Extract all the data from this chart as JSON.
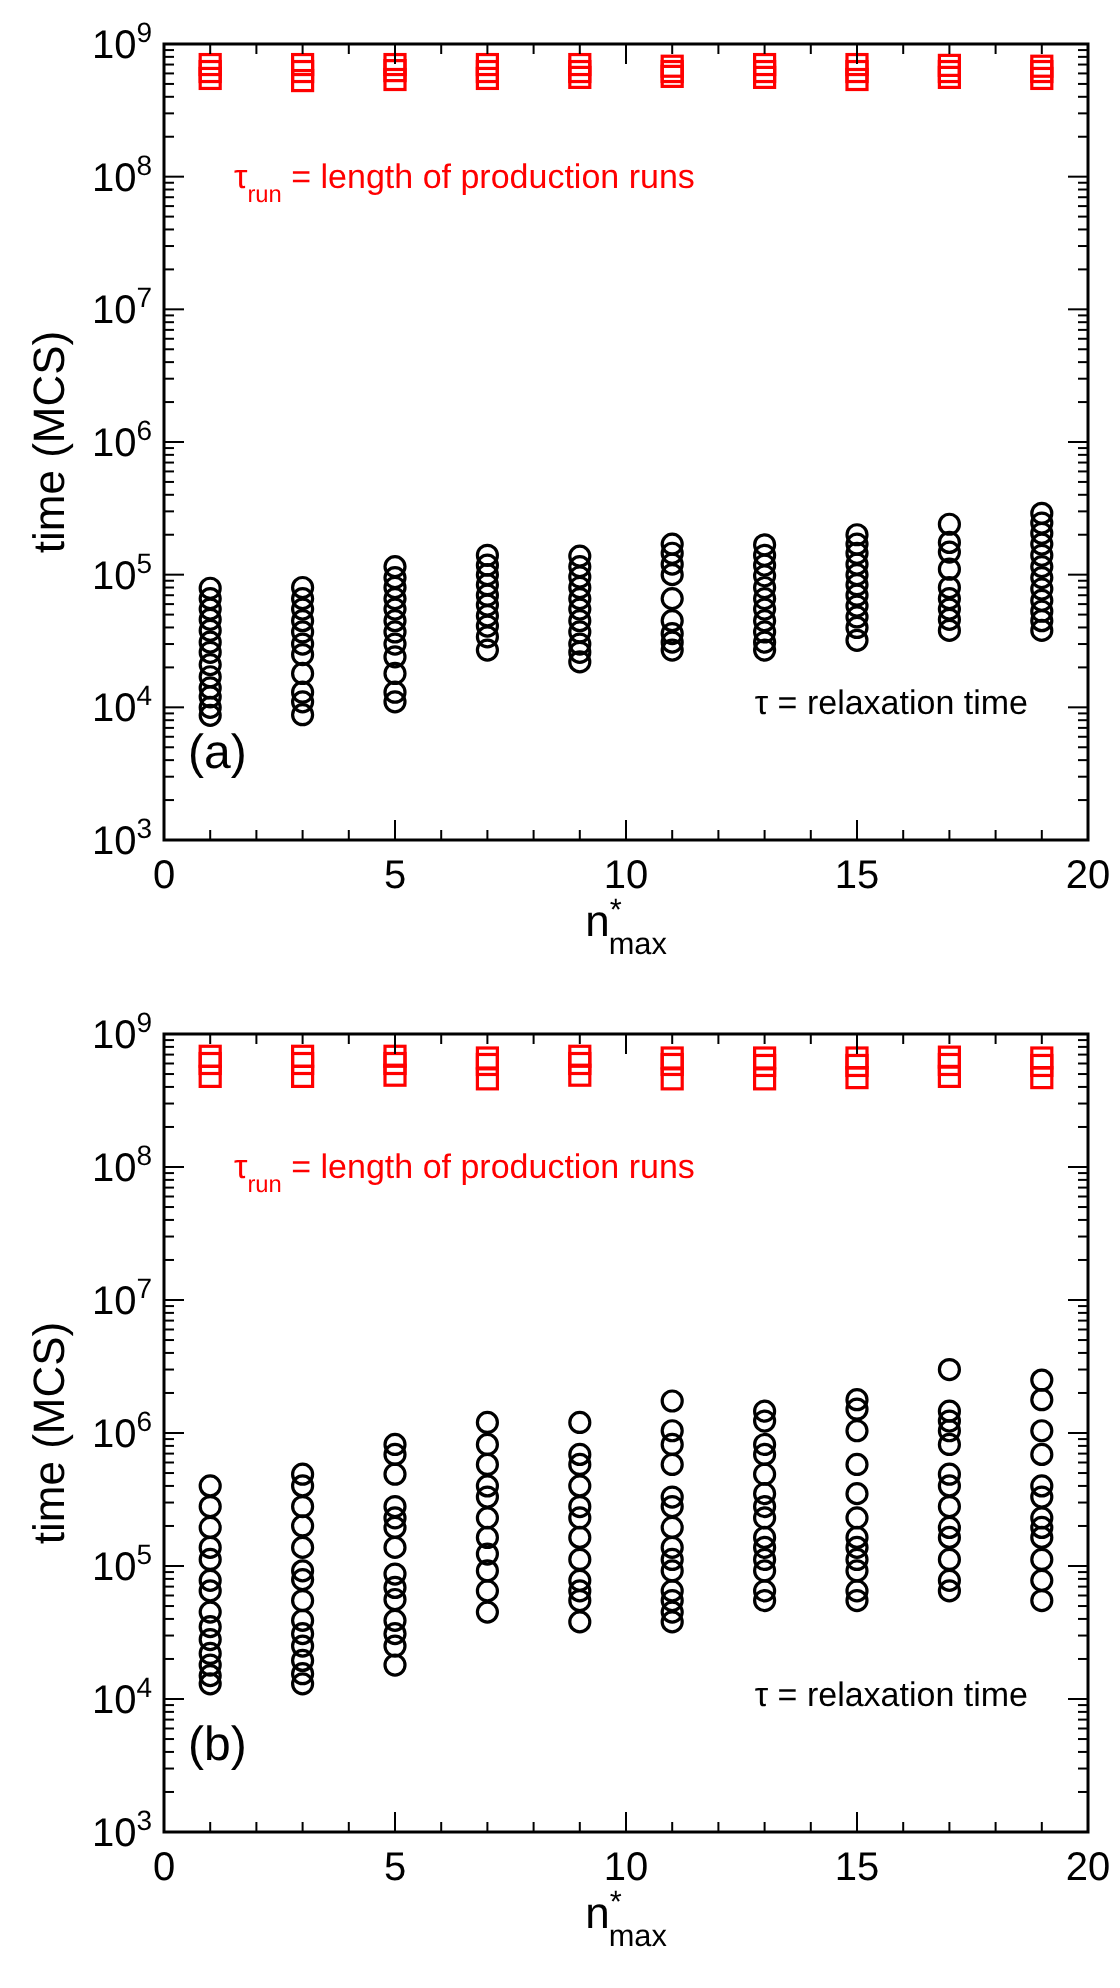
{
  "chart_data": [
    {
      "type": "scatter",
      "xlabel": "n$^{*}$$_{max}$",
      "ylabel": "time (MCS)",
      "log": "y",
      "xlim": [
        0,
        20
      ],
      "xticks": [
        0,
        5,
        10,
        15,
        20
      ],
      "ylim": [
        1000,
        1000000000
      ],
      "yticks": [
        {
          "value": 1000,
          "label": "10$^{3}$"
        },
        {
          "value": 10000,
          "label": "10$^{4}$"
        },
        {
          "value": 100000,
          "label": "10$^{5}$"
        },
        {
          "value": 1000000,
          "label": "10$^{6}$"
        },
        {
          "value": 10000000,
          "label": "10$^{7}$"
        },
        {
          "value": 100000000,
          "label": "10$^{8}$"
        },
        {
          "value": 1000000000,
          "label": "10$^{9}$"
        }
      ],
      "grid": false,
      "annotations": [
        "τ$_{run}$ = length of production runs",
        "τ = relaxation time",
        "(a)"
      ],
      "series": [
        {
          "marker": "circle",
          "color": "#000000",
          "x": [
            1,
            1,
            1,
            1,
            1,
            1,
            1,
            1,
            1,
            1,
            1,
            1,
            1,
            3,
            3,
            3,
            3,
            3,
            3,
            3,
            3,
            3,
            3,
            3,
            5,
            5,
            5,
            5,
            5,
            5,
            5,
            5,
            5,
            5,
            5,
            5,
            7,
            7,
            7,
            7,
            7,
            7,
            7,
            7,
            7,
            7,
            9,
            9,
            9,
            9,
            9,
            9,
            9,
            9,
            9,
            9,
            9,
            11,
            11,
            11,
            11,
            11,
            11,
            11,
            11,
            11,
            13,
            13,
            13,
            13,
            13,
            13,
            13,
            13,
            13,
            13,
            13,
            15,
            15,
            15,
            15,
            15,
            15,
            15,
            15,
            15,
            15,
            15,
            17,
            17,
            17,
            17,
            17,
            17,
            17,
            17,
            17,
            19,
            19,
            19,
            19,
            19,
            19,
            19,
            19,
            19,
            19,
            19,
            19
          ],
          "values": [
            79000,
            66000,
            55000,
            46000,
            38000,
            31000,
            26000,
            21000,
            17000,
            14000,
            12000,
            10000,
            8700,
            80000,
            66000,
            55000,
            45000,
            37000,
            30000,
            25000,
            18000,
            13000,
            11000,
            8800,
            115000,
            95000,
            80000,
            66000,
            55000,
            45000,
            37000,
            30000,
            24000,
            18000,
            13000,
            11000,
            140000,
            118000,
            100000,
            84000,
            70000,
            59000,
            49000,
            41000,
            34000,
            27000,
            138000,
            115000,
            96000,
            80000,
            66000,
            55000,
            45000,
            37000,
            30000,
            26000,
            22000,
            170000,
            145000,
            120000,
            100000,
            66000,
            45000,
            36000,
            31000,
            27000,
            168000,
            140000,
            118000,
            98000,
            80000,
            66000,
            55000,
            45000,
            37000,
            31000,
            27000,
            200000,
            170000,
            145000,
            120000,
            100000,
            84000,
            70000,
            58000,
            48000,
            40000,
            32000,
            240000,
            175000,
            148000,
            110000,
            80000,
            66000,
            55000,
            46000,
            38000,
            290000,
            245000,
            205000,
            170000,
            140000,
            115000,
            95000,
            78000,
            64000,
            53000,
            45000,
            38000
          ]
        },
        {
          "marker": "square",
          "color": "#ff0000",
          "x": [
            1,
            1,
            1,
            3,
            3,
            3,
            5,
            5,
            5,
            7,
            7,
            7,
            9,
            9,
            9,
            11,
            11,
            11,
            13,
            13,
            13,
            15,
            15,
            15,
            17,
            17,
            17,
            19,
            19,
            19
          ],
          "values": [
            700000000,
            620000000,
            550000000,
            700000000,
            620000000,
            530000000,
            700000000,
            630000000,
            540000000,
            700000000,
            620000000,
            550000000,
            700000000,
            620000000,
            560000000,
            680000000,
            620000000,
            570000000,
            700000000,
            620000000,
            560000000,
            700000000,
            620000000,
            540000000,
            690000000,
            620000000,
            560000000,
            680000000,
            620000000,
            550000000
          ]
        }
      ]
    },
    {
      "type": "scatter",
      "xlabel": "n$^{*}$$_{max}$",
      "ylabel": "time (MCS)",
      "log": "y",
      "xlim": [
        0,
        20
      ],
      "xticks": [
        0,
        5,
        10,
        15,
        20
      ],
      "ylim": [
        1000,
        1000000000
      ],
      "yticks": [
        {
          "value": 1000,
          "label": "10$^{3}$"
        },
        {
          "value": 10000,
          "label": "10$^{4}$"
        },
        {
          "value": 100000,
          "label": "10$^{5}$"
        },
        {
          "value": 1000000,
          "label": "10$^{6}$"
        },
        {
          "value": 10000000,
          "label": "10$^{7}$"
        },
        {
          "value": 100000000,
          "label": "10$^{8}$"
        },
        {
          "value": 1000000000,
          "label": "10$^{9}$"
        }
      ],
      "grid": false,
      "annotations": [
        "τ$_{run}$ = length of production runs",
        "τ = relaxation time",
        "(b)"
      ],
      "series": [
        {
          "marker": "circle",
          "color": "#000000",
          "x": [
            1,
            1,
            1,
            1,
            1,
            1,
            1,
            1,
            1,
            1,
            1,
            1,
            1,
            1,
            3,
            3,
            3,
            3,
            3,
            3,
            3,
            3,
            3,
            3,
            3,
            3,
            3,
            3,
            5,
            5,
            5,
            5,
            5,
            5,
            5,
            5,
            5,
            5,
            5,
            5,
            5,
            5,
            7,
            7,
            7,
            7,
            7,
            7,
            7,
            7,
            7,
            7,
            7,
            9,
            9,
            9,
            9,
            9,
            9,
            9,
            9,
            9,
            9,
            9,
            9,
            11,
            11,
            11,
            11,
            11,
            11,
            11,
            11,
            11,
            11,
            11,
            11,
            11,
            11,
            13,
            13,
            13,
            13,
            13,
            13,
            13,
            13,
            13,
            13,
            13,
            13,
            13,
            13,
            15,
            15,
            15,
            15,
            15,
            15,
            15,
            15,
            15,
            15,
            15,
            15,
            17,
            17,
            17,
            17,
            17,
            17,
            17,
            17,
            17,
            17,
            17,
            17,
            17,
            19,
            19,
            19,
            19,
            19,
            19,
            19,
            19,
            19,
            19,
            19,
            19
          ],
          "values": [
            400000,
            280000,
            195000,
            138000,
            112000,
            78000,
            65000,
            45000,
            35000,
            28000,
            22000,
            18000,
            15000,
            13000,
            490000,
            400000,
            280000,
            200000,
            138000,
            92000,
            79000,
            55000,
            39000,
            31000,
            25000,
            19500,
            15500,
            13000,
            820000,
            690000,
            490000,
            280000,
            230000,
            195000,
            138000,
            87000,
            69000,
            56000,
            39000,
            31000,
            25000,
            18000,
            1200000,
            820000,
            580000,
            400000,
            330000,
            230000,
            164000,
            123000,
            92000,
            65000,
            45000,
            1200000,
            690000,
            580000,
            400000,
            280000,
            230000,
            164000,
            112000,
            78000,
            65000,
            55000,
            38000,
            1740000,
            1040000,
            820000,
            580000,
            330000,
            280000,
            195000,
            138000,
            112000,
            92000,
            65000,
            55000,
            45000,
            38000,
            1460000,
            1230000,
            820000,
            690000,
            490000,
            350000,
            280000,
            230000,
            164000,
            138000,
            112000,
            92000,
            65000,
            55000,
            1780000,
            1510000,
            1040000,
            580000,
            350000,
            230000,
            164000,
            138000,
            112000,
            92000,
            65000,
            55000,
            3000000,
            1460000,
            1230000,
            1040000,
            820000,
            490000,
            400000,
            280000,
            195000,
            164000,
            112000,
            78000,
            65000,
            2500000,
            1780000,
            1040000,
            690000,
            400000,
            330000,
            230000,
            195000,
            164000,
            112000,
            78000,
            55000
          ]
        },
        {
          "marker": "square",
          "color": "#ff0000",
          "x": [
            1,
            1,
            1,
            3,
            3,
            3,
            5,
            5,
            5,
            7,
            7,
            7,
            9,
            9,
            9,
            11,
            11,
            11,
            13,
            13,
            13,
            15,
            15,
            15,
            17,
            17,
            17,
            19,
            19,
            19
          ],
          "values": [
            680000000,
            600000000,
            480000000,
            680000000,
            600000000,
            480000000,
            680000000,
            600000000,
            490000000,
            660000000,
            590000000,
            460000000,
            680000000,
            600000000,
            490000000,
            660000000,
            590000000,
            460000000,
            660000000,
            580000000,
            460000000,
            660000000,
            580000000,
            470000000,
            670000000,
            590000000,
            480000000,
            660000000,
            580000000,
            470000000
          ]
        }
      ]
    }
  ]
}
